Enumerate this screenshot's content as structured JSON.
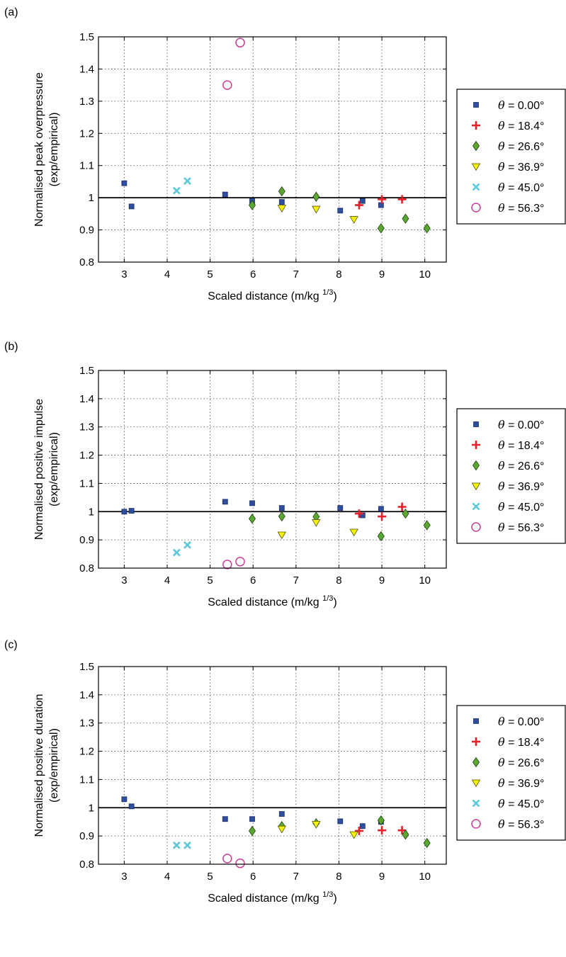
{
  "chart_data": [
    {
      "type": "scatter",
      "panel_label": "(a)",
      "xlabel": "Scaled distance (m/kg",
      "xlabel_sup": "1/3",
      "xlabel_close": ")",
      "ylabel_line1": "Normalised peak overpressure",
      "ylabel_line2": "(exp/empirical)",
      "xlim": [
        2.4,
        10.5
      ],
      "ylim": [
        0.8,
        1.5
      ],
      "xticks": [
        "3",
        "4",
        "5",
        "6",
        "7",
        "8",
        "9",
        "10"
      ],
      "yticks": [
        "0.8",
        "0.9",
        "1",
        "1.1",
        "1.2",
        "1.3",
        "1.4",
        "1.5"
      ],
      "grid": true,
      "reference_line": 1.0,
      "legend_position": "right",
      "series": [
        {
          "name": "θ = 0.00°",
          "marker": "square",
          "color": "#2f4f9e",
          "x": [
            3.0,
            3.17,
            5.35,
            5.98,
            6.67,
            8.03,
            8.55,
            8.98
          ],
          "y": [
            1.045,
            0.973,
            1.01,
            0.99,
            0.987,
            0.96,
            0.99,
            0.977
          ]
        },
        {
          "name": "θ = 18.4°",
          "marker": "plus",
          "color": "#e8202a",
          "x": [
            8.47,
            9.0,
            9.47
          ],
          "y": [
            0.977,
            0.995,
            0.995
          ]
        },
        {
          "name": "θ = 26.6°",
          "marker": "diamond",
          "color": "#5aa832",
          "x": [
            5.98,
            6.67,
            7.47,
            8.98,
            9.55,
            10.05
          ],
          "y": [
            0.977,
            1.02,
            1.003,
            0.905,
            0.935,
            0.905
          ]
        },
        {
          "name": "θ = 36.9°",
          "marker": "triangle-down",
          "color": "#f5f20a",
          "x": [
            6.67,
            7.47,
            8.35
          ],
          "y": [
            0.968,
            0.965,
            0.933
          ]
        },
        {
          "name": "θ = 45.0°",
          "marker": "x",
          "color": "#5bc8d8",
          "x": [
            4.22,
            4.47
          ],
          "y": [
            1.022,
            1.052
          ]
        },
        {
          "name": "θ = 56.3°",
          "marker": "circle",
          "color": "#c8409a",
          "x": [
            5.4,
            5.7
          ],
          "y": [
            1.35,
            1.482
          ]
        }
      ]
    },
    {
      "type": "scatter",
      "panel_label": "(b)",
      "xlabel": "Scaled distance (m/kg",
      "xlabel_sup": "1/3",
      "xlabel_close": ")",
      "ylabel_line1": "Normalised positive impulse",
      "ylabel_line2": "(exp/empirical)",
      "xlim": [
        2.4,
        10.5
      ],
      "ylim": [
        0.8,
        1.5
      ],
      "xticks": [
        "3",
        "4",
        "5",
        "6",
        "7",
        "8",
        "9",
        "10"
      ],
      "yticks": [
        "0.8",
        "0.9",
        "1",
        "1.1",
        "1.2",
        "1.3",
        "1.4",
        "1.5"
      ],
      "grid": true,
      "reference_line": 1.0,
      "legend_position": "right",
      "series": [
        {
          "name": "θ = 0.00°",
          "marker": "square",
          "color": "#2f4f9e",
          "x": [
            3.0,
            3.17,
            5.35,
            5.98,
            6.67,
            8.03,
            8.55,
            8.98
          ],
          "y": [
            1.0,
            1.003,
            1.035,
            1.03,
            1.013,
            1.013,
            0.987,
            1.01
          ]
        },
        {
          "name": "θ = 18.4°",
          "marker": "plus",
          "color": "#e8202a",
          "x": [
            8.47,
            9.0,
            9.47
          ],
          "y": [
            0.993,
            0.983,
            1.017
          ]
        },
        {
          "name": "θ = 26.6°",
          "marker": "diamond",
          "color": "#5aa832",
          "x": [
            5.98,
            6.67,
            7.47,
            8.98,
            9.55,
            10.05
          ],
          "y": [
            0.975,
            0.983,
            0.982,
            0.913,
            0.993,
            0.952
          ]
        },
        {
          "name": "θ = 36.9°",
          "marker": "triangle-down",
          "color": "#f5f20a",
          "x": [
            6.67,
            7.47,
            8.35
          ],
          "y": [
            0.918,
            0.962,
            0.928
          ]
        },
        {
          "name": "θ = 45.0°",
          "marker": "x",
          "color": "#5bc8d8",
          "x": [
            4.22,
            4.47
          ],
          "y": [
            0.855,
            0.882
          ]
        },
        {
          "name": "θ = 56.3°",
          "marker": "circle",
          "color": "#c8409a",
          "x": [
            5.4,
            5.7
          ],
          "y": [
            0.813,
            0.823
          ]
        }
      ]
    },
    {
      "type": "scatter",
      "panel_label": "(c)",
      "xlabel": "Scaled distance (m/kg",
      "xlabel_sup": "1/3",
      "xlabel_close": ")",
      "ylabel_line1": "Normalised positive duration",
      "ylabel_line2": "(exp/empirical)",
      "xlim": [
        2.4,
        10.5
      ],
      "ylim": [
        0.8,
        1.5
      ],
      "xticks": [
        "3",
        "4",
        "5",
        "6",
        "7",
        "8",
        "9",
        "10"
      ],
      "yticks": [
        "0.8",
        "0.9",
        "1",
        "1.1",
        "1.2",
        "1.3",
        "1.4",
        "1.5"
      ],
      "grid": true,
      "reference_line": 1.0,
      "legend_position": "right",
      "series": [
        {
          "name": "θ = 0.00°",
          "marker": "square",
          "color": "#2f4f9e",
          "x": [
            3.0,
            3.17,
            5.35,
            5.98,
            6.67,
            8.03,
            8.55,
            8.98
          ],
          "y": [
            1.03,
            1.005,
            0.96,
            0.96,
            0.978,
            0.952,
            0.935,
            0.95
          ]
        },
        {
          "name": "θ = 18.4°",
          "marker": "plus",
          "color": "#e8202a",
          "x": [
            8.47,
            9.0,
            9.47
          ],
          "y": [
            0.918,
            0.92,
            0.92
          ]
        },
        {
          "name": "θ = 26.6°",
          "marker": "diamond",
          "color": "#5aa832",
          "x": [
            5.98,
            6.67,
            7.47,
            8.98,
            9.55,
            10.05
          ],
          "y": [
            0.918,
            0.935,
            0.945,
            0.955,
            0.905,
            0.875
          ]
        },
        {
          "name": "θ = 36.9°",
          "marker": "triangle-down",
          "color": "#f5f20a",
          "x": [
            6.67,
            7.47,
            8.35
          ],
          "y": [
            0.925,
            0.942,
            0.905
          ]
        },
        {
          "name": "θ = 45.0°",
          "marker": "x",
          "color": "#5bc8d8",
          "x": [
            4.22,
            4.47
          ],
          "y": [
            0.867,
            0.867
          ]
        },
        {
          "name": "θ = 56.3°",
          "marker": "circle",
          "color": "#c8409a",
          "x": [
            5.4,
            5.7
          ],
          "y": [
            0.82,
            0.803
          ]
        }
      ]
    }
  ]
}
